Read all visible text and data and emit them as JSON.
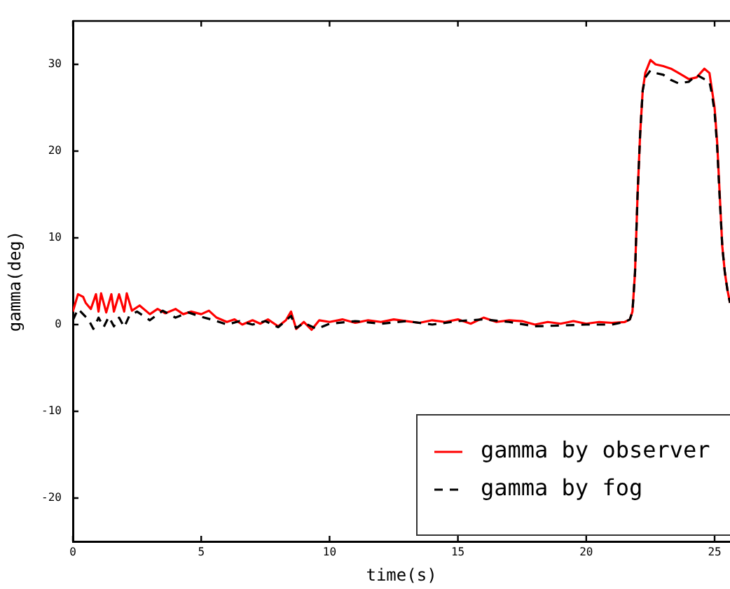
{
  "chart_data": {
    "type": "line",
    "xlabel": "time(s)",
    "ylabel": "gamma(deg)",
    "xlim": [
      0,
      25.6
    ],
    "xticks": [
      0,
      5,
      10,
      15,
      20,
      25
    ],
    "ylim": [
      -25,
      35
    ],
    "yticks": [
      -20,
      -10,
      0,
      10,
      20,
      30
    ],
    "grid": false,
    "legend": "bottom right",
    "marker": "none",
    "series": [
      {
        "name": "gamma by observer",
        "color": "#ff0000",
        "line_style": "solid",
        "x": [
          0,
          0.2,
          0.4,
          0.5,
          0.7,
          0.9,
          1,
          1.1,
          1.3,
          1.5,
          1.6,
          1.8,
          2,
          2.1,
          2.3,
          2.6,
          3,
          3.3,
          3.6,
          4,
          4.3,
          4.6,
          5,
          5.3,
          5.6,
          6,
          6.3,
          6.6,
          7,
          7.3,
          7.6,
          8,
          8.3,
          8.5,
          8.7,
          9,
          9.3,
          9.6,
          10,
          10.5,
          11,
          11.5,
          12,
          12.5,
          13,
          13.5,
          14,
          14.5,
          15,
          15.5,
          16,
          16.5,
          17,
          17.5,
          18,
          18.5,
          19,
          19.5,
          20,
          20.5,
          21,
          21.5,
          21.7,
          21.8,
          21.9,
          22,
          22.1,
          22.2,
          22.3,
          22.5,
          22.7,
          23,
          23.3,
          23.6,
          24,
          24.3,
          24.6,
          24.8,
          24.9,
          25,
          25.1,
          25.2,
          25.3,
          25.4,
          25.5,
          25.6
        ],
        "values": [
          1.5,
          3.5,
          3.2,
          2.5,
          1.8,
          3.5,
          1.5,
          3.6,
          1.4,
          3.5,
          1.5,
          3.5,
          1.5,
          3.6,
          1.6,
          2.2,
          1.2,
          1.8,
          1.3,
          1.8,
          1.2,
          1.5,
          1.2,
          1.6,
          0.8,
          0.3,
          0.6,
          0,
          0.5,
          0.1,
          0.6,
          -0.2,
          0.5,
          1.5,
          -0.5,
          0.3,
          -0.6,
          0.5,
          0.3,
          0.6,
          0.2,
          0.5,
          0.3,
          0.6,
          0.4,
          0.2,
          0.5,
          0.3,
          0.6,
          0.1,
          0.8,
          0.3,
          0.5,
          0.4,
          0,
          0.3,
          0.1,
          0.4,
          0.1,
          0.3,
          0.2,
          0.3,
          0.6,
          1.5,
          6,
          15,
          22,
          27,
          29,
          30.5,
          30,
          29.8,
          29.5,
          29,
          28.3,
          28.5,
          29.5,
          29,
          27,
          25,
          21,
          15,
          9,
          6,
          4,
          2.5
        ]
      },
      {
        "name": "gamma by fog",
        "color": "#000000",
        "line_style": "dashed",
        "x": [
          0,
          0.2,
          0.4,
          0.6,
          0.8,
          1,
          1.2,
          1.4,
          1.6,
          1.8,
          2,
          2.2,
          2.5,
          3,
          3.5,
          4,
          4.5,
          5,
          5.5,
          6,
          6.5,
          7,
          7.5,
          8,
          8.5,
          8.7,
          9,
          9.5,
          10,
          11,
          12,
          13,
          14,
          15,
          16,
          17,
          18,
          19,
          20,
          21,
          21.5,
          21.7,
          21.8,
          21.9,
          22,
          22.1,
          22.2,
          22.3,
          22.5,
          22.7,
          23,
          23.3,
          23.6,
          24,
          24.3,
          24.6,
          24.8,
          24.9,
          25,
          25.1,
          25.2,
          25.3,
          25.4,
          25.5,
          25.6
        ],
        "values": [
          0.5,
          1.8,
          1.2,
          0.6,
          -0.5,
          0.8,
          -0.3,
          0.9,
          -0.2,
          0.8,
          -0.3,
          1,
          1.5,
          0.5,
          1.6,
          0.8,
          1.4,
          0.9,
          0.5,
          0,
          0.4,
          0,
          0.4,
          -0.3,
          1,
          -0.4,
          0.2,
          -0.5,
          0.1,
          0.4,
          0.1,
          0.4,
          0,
          0.4,
          0.6,
          0.3,
          -0.2,
          -0.1,
          0,
          0,
          0.3,
          0.6,
          1.5,
          6,
          15,
          22,
          27,
          28.5,
          29.3,
          29,
          28.8,
          28.2,
          27.8,
          28,
          28.8,
          28.3,
          28,
          26.5,
          24.5,
          20.5,
          14.5,
          9,
          6,
          4,
          2.5
        ]
      }
    ]
  }
}
